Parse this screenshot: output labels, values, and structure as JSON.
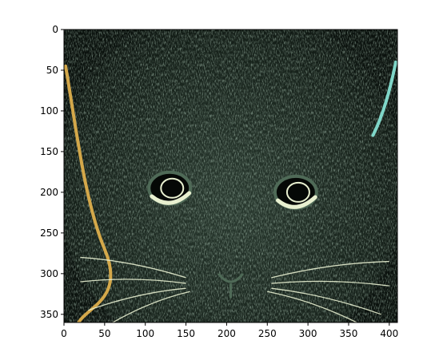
{
  "chart_data": {
    "type": "heatmap",
    "title": "",
    "xlabel": "",
    "ylabel": "",
    "image_description_kind": "imshow",
    "xlim": [
      0,
      410
    ],
    "ylim": [
      360,
      0
    ],
    "x_ticks": [
      0,
      50,
      100,
      150,
      200,
      250,
      300,
      350,
      400
    ],
    "y_ticks": [
      0,
      50,
      100,
      150,
      200,
      250,
      300,
      350
    ],
    "x_tick_labels": [
      "0",
      "50",
      "100",
      "150",
      "200",
      "250",
      "300",
      "350",
      "400"
    ],
    "y_tick_labels": [
      "0",
      "50",
      "100",
      "150",
      "200",
      "250",
      "300",
      "350"
    ],
    "grid": false,
    "y_axis_inverted": true,
    "colors": {
      "background": "#0b120e",
      "fur_dark": "#1d2a22",
      "fur_mid": "#4f6a57",
      "edge_light": "#e8f0d0",
      "edge_teal": "#7fd6c8",
      "edge_gold": "#d4a84a"
    }
  }
}
